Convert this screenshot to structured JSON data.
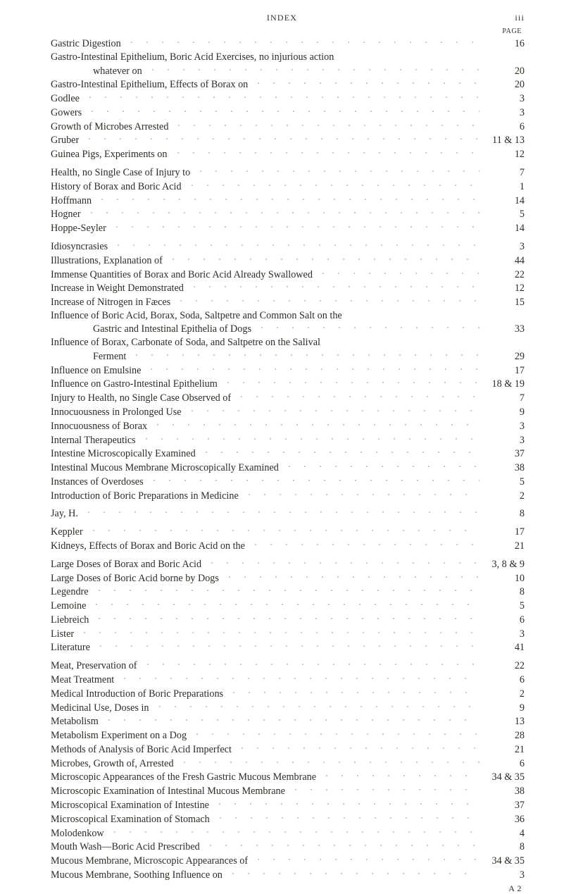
{
  "header": {
    "center": "INDEX",
    "right": "iii",
    "page_label": "PAGE"
  },
  "entries": [
    {
      "label": "Gastric Digestion",
      "page": "16"
    },
    {
      "label": "Gastro-Intestinal Epithelium, Boric Acid Exercises, no injurious action",
      "page": "",
      "no_leader": true
    },
    {
      "label": "whatever on",
      "page": "20",
      "indent": 2
    },
    {
      "label": "Gastro-Intestinal Epithelium, Effects of Borax on",
      "page": "20"
    },
    {
      "label": "Godlee",
      "page": "3"
    },
    {
      "label": "Gowers",
      "page": "3"
    },
    {
      "label": "Growth of Microbes Arrested",
      "page": "6"
    },
    {
      "label": "Gruber",
      "page": "11 & 13"
    },
    {
      "label": "Guinea Pigs, Experiments on",
      "page": "12"
    },
    {
      "label": "Health, no Single Case of Injury to",
      "page": "7",
      "gap": true
    },
    {
      "label": "History of Borax and Boric Acid",
      "page": "1"
    },
    {
      "label": "Hoffmann",
      "page": "14"
    },
    {
      "label": "Hogner",
      "page": "5"
    },
    {
      "label": "Hoppe-Seyler",
      "page": "14"
    },
    {
      "label": "Idiosyncrasies",
      "page": "3",
      "gap": true
    },
    {
      "label": "Illustrations, Explanation of",
      "page": "44"
    },
    {
      "label": "Immense Quantities of Borax and Boric Acid Already Swallowed",
      "page": "22"
    },
    {
      "label": "Increase in Weight Demonstrated",
      "page": "12"
    },
    {
      "label": "Increase of Nitrogen in Fæces",
      "page": "15"
    },
    {
      "label": "Influence of Boric Acid, Borax, Soda, Saltpetre and Common Salt on the",
      "page": "",
      "no_leader": true
    },
    {
      "label": "Gastric and Intestinal Epithelia of Dogs",
      "page": "33",
      "indent": 2
    },
    {
      "label": "Influence of Borax, Carbonate of Soda, and Saltpetre on the Salival",
      "page": "",
      "no_leader": true
    },
    {
      "label": "Ferment",
      "page": "29",
      "indent": 2
    },
    {
      "label": "Influence on Emulsine",
      "page": "17"
    },
    {
      "label": "Influence on Gastro-Intestinal Epithelium",
      "page": "18 & 19"
    },
    {
      "label": "Injury to Health, no Single Case Observed of",
      "page": "7"
    },
    {
      "label": "Innocuousness in Prolonged Use",
      "page": "9"
    },
    {
      "label": "Innocuousness of Borax",
      "page": "3"
    },
    {
      "label": "Internal Therapeutics",
      "page": "3"
    },
    {
      "label": "Intestine Microscopically Examined",
      "page": "37"
    },
    {
      "label": "Intestinal Mucous Membrane Microscopically Examined",
      "page": "38"
    },
    {
      "label": "Instances of Overdoses",
      "page": "5"
    },
    {
      "label": "Introduction of Boric Preparations in Medicine",
      "page": "2"
    },
    {
      "label": "Jay, H.",
      "page": "8",
      "gap": true
    },
    {
      "label": "Keppler",
      "page": "17",
      "gap": true
    },
    {
      "label": "Kidneys, Effects of Borax and Boric Acid on the",
      "page": "21"
    },
    {
      "label": "Large Doses of Borax and Boric Acid",
      "page": "3, 8 & 9",
      "gap": true
    },
    {
      "label": "Large Doses of Boric Acid borne by Dogs",
      "page": "10"
    },
    {
      "label": "Legendre",
      "page": "8"
    },
    {
      "label": "Lemoine",
      "page": "5"
    },
    {
      "label": "Liebreich",
      "page": "6"
    },
    {
      "label": "Lister",
      "page": "3"
    },
    {
      "label": "Literature",
      "page": "41"
    },
    {
      "label": "Meat, Preservation of",
      "page": "22",
      "gap": true
    },
    {
      "label": "Meat Treatment",
      "page": "6"
    },
    {
      "label": "Medical Introduction of Boric Preparations",
      "page": "2"
    },
    {
      "label": "Medicinal Use, Doses in",
      "page": "9"
    },
    {
      "label": "Metabolism",
      "page": "13"
    },
    {
      "label": "Metabolism Experiment on a Dog",
      "page": "28"
    },
    {
      "label": "Methods of Analysis of Boric Acid Imperfect",
      "page": "21"
    },
    {
      "label": "Microbes, Growth of, Arrested",
      "page": "6"
    },
    {
      "label": "Microscopic Appearances of the Fresh Gastric Mucous Membrane",
      "page": "34 & 35"
    },
    {
      "label": "Microscopic Examination of Intestinal Mucous Membrane",
      "page": "38"
    },
    {
      "label": "Microscopical Examination of Intestine",
      "page": "37"
    },
    {
      "label": "Microscopical Examination of Stomach",
      "page": "36"
    },
    {
      "label": "Molodenkow",
      "page": "4"
    },
    {
      "label": "Mouth Wash—Boric Acid Prescribed",
      "page": "8"
    },
    {
      "label": "Mucous Membrane, Microscopic Appearances of",
      "page": "34 & 35"
    },
    {
      "label": "Mucous Membrane, Soothing Influence on",
      "page": "3"
    }
  ],
  "footer": {
    "sig": "A 2"
  }
}
